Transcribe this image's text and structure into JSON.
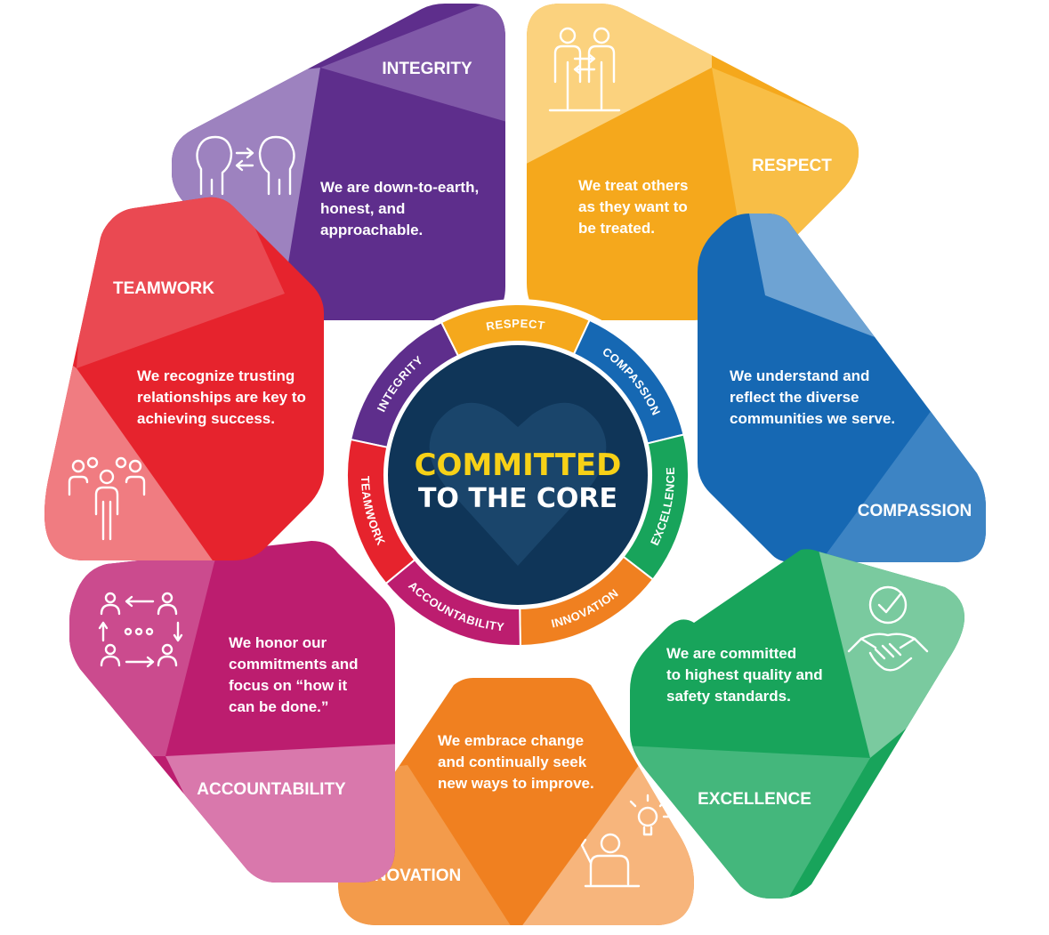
{
  "center": {
    "line1": "COMMITTED",
    "line2": "TO THE CORE",
    "line1_color": "#F7D117",
    "disc_color": "#0F3558"
  },
  "petals": [
    {
      "key": "integrity",
      "title": "INTEGRITY",
      "desc": [
        "We are down-to-earth,",
        "honest, and",
        "approachable."
      ],
      "icon": "two-heads-exchange-icon",
      "color_dark": "#5E2E8C",
      "color_mid": "#8059A8",
      "color_light": "#9D82BF"
    },
    {
      "key": "respect",
      "title": "RESPECT",
      "desc": [
        "We treat others",
        "as they want to",
        "be treated."
      ],
      "icon": "two-people-exchange-icon",
      "color_dark": "#F5A81C",
      "color_mid": "#F8BE46",
      "color_light": "#FBD27E"
    },
    {
      "key": "compassion",
      "title": "COMPASSION",
      "desc": [
        "We understand and",
        "reflect the diverse",
        "communities we serve."
      ],
      "icon": "person-arrows-icon",
      "color_dark": "#1668B3",
      "color_mid": "#3D84C4",
      "color_light": "#6EA3D3"
    },
    {
      "key": "excellence",
      "title": "EXCELLENCE",
      "desc": [
        "We are committed",
        "to highest quality and",
        "safety standards."
      ],
      "icon": "handshake-check-icon",
      "color_dark": "#18A45B",
      "color_mid": "#44B77C",
      "color_light": "#7ACA9F"
    },
    {
      "key": "innovation",
      "title": "INNOVATION",
      "desc": [
        "We embrace change",
        "and continually seek",
        "new ways to improve."
      ],
      "icon": "person-lightbulb-icon",
      "color_dark": "#F08020",
      "color_mid": "#F39B4B",
      "color_light": "#F7B57C"
    },
    {
      "key": "accountability",
      "title": "ACCOUNTABILITY",
      "desc": [
        "We honor our",
        "commitments and",
        "focus on “how it",
        "can be done.”"
      ],
      "icon": "people-cycle-icon",
      "color_dark": "#BC1D6F",
      "color_mid": "#CB4B8E",
      "color_light": "#D978AC"
    },
    {
      "key": "teamwork",
      "title": "TEAMWORK",
      "desc": [
        "We recognize trusting",
        "relationships are key to",
        "achieving success."
      ],
      "icon": "team-group-icon",
      "color_dark": "#E6232D",
      "color_mid": "#EA4952",
      "color_light": "#F07C81"
    }
  ],
  "ring": [
    {
      "label": "INTEGRITY",
      "color": "#5E2E8C"
    },
    {
      "label": "RESPECT",
      "color": "#F5A81C"
    },
    {
      "label": "COMPASSION",
      "color": "#1668B3"
    },
    {
      "label": "EXCELLENCE",
      "color": "#18A45B"
    },
    {
      "label": "INNOVATION",
      "color": "#F08020"
    },
    {
      "label": "ACCOUNTABILITY",
      "color": "#BC1D6F"
    },
    {
      "label": "TEAMWORK",
      "color": "#E6232D"
    }
  ]
}
